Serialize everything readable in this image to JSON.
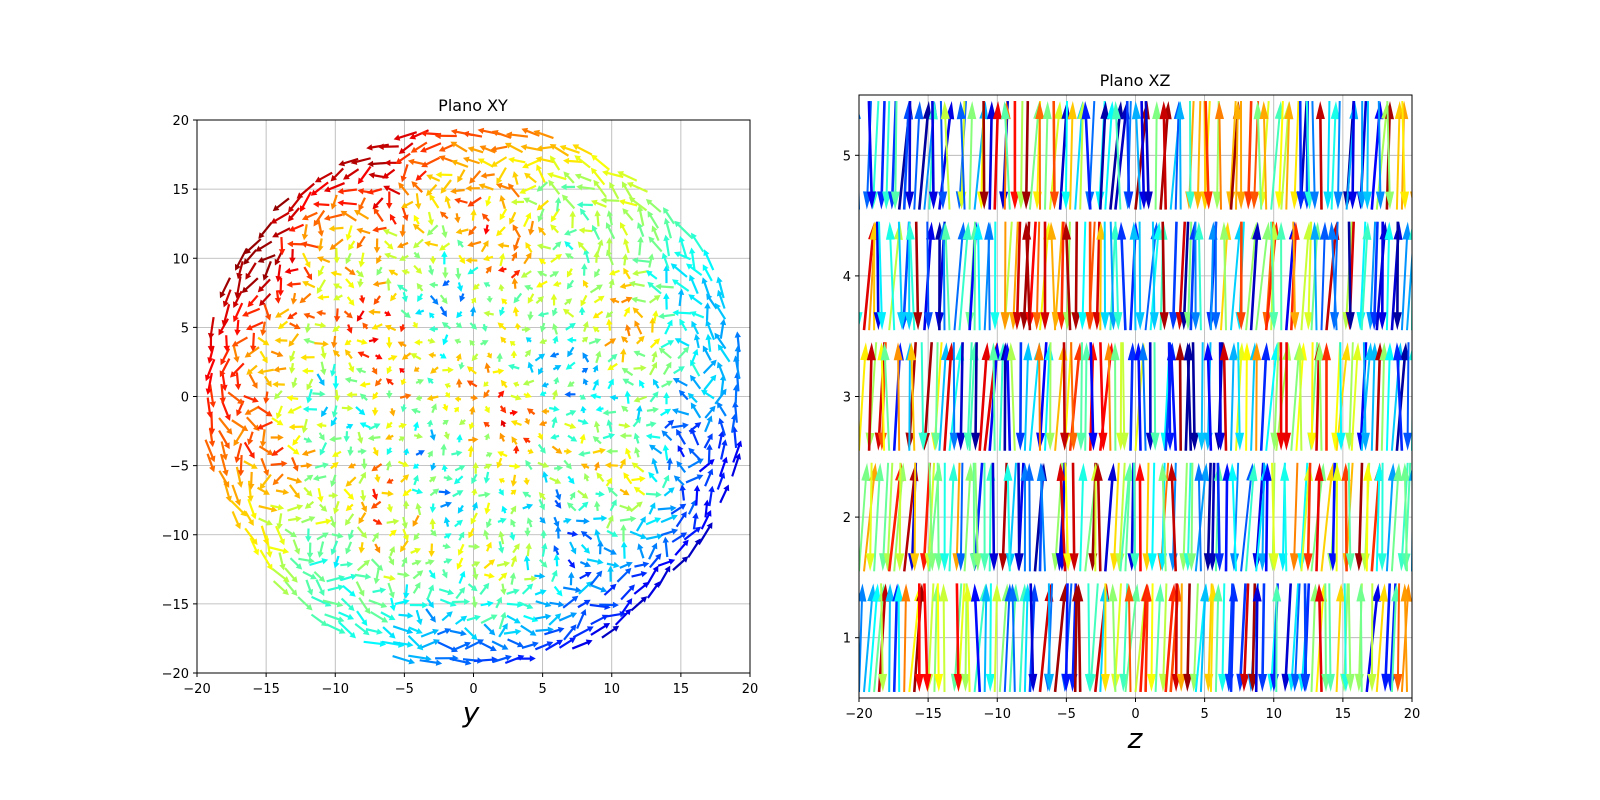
{
  "figure": {
    "background": "#ffffff",
    "colormap": "jet",
    "colormap_stops": [
      "#00007f",
      "#0000ff",
      "#007fff",
      "#00ffff",
      "#7fff7f",
      "#ffff00",
      "#ff7f00",
      "#ff0000",
      "#7f0000"
    ]
  },
  "chart_data": [
    {
      "type": "quiver",
      "title": "Plano XY",
      "xlabel": "y",
      "ylabel": "",
      "xlim": [
        -20,
        20
      ],
      "ylim": [
        -20,
        20
      ],
      "xticks": [
        -20,
        -15,
        -10,
        -5,
        0,
        5,
        10,
        15,
        20
      ],
      "yticks": [
        -20,
        -15,
        -10,
        -5,
        0,
        5,
        10,
        15,
        20
      ],
      "grid": true,
      "field": {
        "region": "disk",
        "radius": 20,
        "grid_step": 1,
        "description_of_colors": "red/orange along upper-left rim, blue along lower-right rim, mixed green/yellow/cyan interior"
      },
      "rim_samples": [
        {
          "x": -19,
          "y": 0,
          "color": "#ff2000"
        },
        {
          "x": -17,
          "y": 10,
          "color": "#ff4000"
        },
        {
          "x": -12,
          "y": 16,
          "color": "#ff4000"
        },
        {
          "x": -5,
          "y": 19,
          "color": "#ff9000"
        },
        {
          "x": 5,
          "y": 18,
          "color": "#ffa000"
        },
        {
          "x": 14,
          "y": 13,
          "color": "#c0ff30"
        },
        {
          "x": 19,
          "y": 4,
          "color": "#40ffc0"
        },
        {
          "x": 19,
          "y": -5,
          "color": "#0040ff"
        },
        {
          "x": 15,
          "y": -12,
          "color": "#0060ff"
        },
        {
          "x": 5,
          "y": -18,
          "color": "#0030ff"
        },
        {
          "x": -5,
          "y": -19,
          "color": "#0060ff"
        },
        {
          "x": -15,
          "y": -12,
          "color": "#50ffa0"
        },
        {
          "x": -19,
          "y": -7,
          "color": "#ff3000"
        }
      ]
    },
    {
      "type": "quiver",
      "title": "Plano XZ",
      "xlabel": "z",
      "ylabel": "",
      "xlim": [
        -20,
        20
      ],
      "ylim": [
        0.5,
        5.5
      ],
      "xticks": [
        -20,
        -15,
        -10,
        -5,
        0,
        5,
        10,
        15,
        20
      ],
      "yticks": [
        1,
        2,
        3,
        4,
        5
      ],
      "grid": true,
      "field": {
        "bands": [
          1,
          2,
          3,
          4,
          5
        ],
        "band_half_height": 0.45,
        "x_step": 0.8,
        "description_of_colors": "dense slanted arrows in every band; mostly yellow/green/cyan with scattered orange-red and blue arrows"
      }
    }
  ]
}
